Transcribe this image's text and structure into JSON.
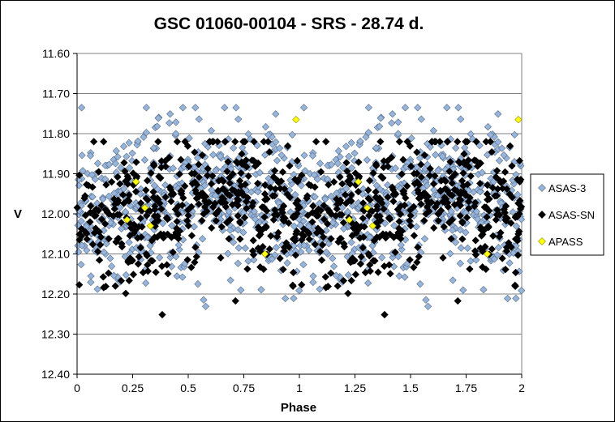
{
  "chart_data": {
    "type": "scatter",
    "title": "GSC 01060-00104  - SRS - 28.74 d.",
    "xlabel": "Phase",
    "ylabel": "V",
    "xlim": [
      0,
      2
    ],
    "ylim": [
      11.6,
      12.4
    ],
    "y_reversed": true,
    "grid": "horizontal",
    "legend_position": "right",
    "x_ticks": [
      "0",
      "0.25",
      "0.5",
      "0.75",
      "1",
      "1.25",
      "1.5",
      "1.75",
      "2"
    ],
    "y_ticks": [
      "11.60",
      "11.70",
      "11.80",
      "11.90",
      "12.00",
      "12.10",
      "12.20",
      "12.30",
      "12.40"
    ],
    "series": [
      {
        "name": "ASAS-3",
        "color": "#99B4D9",
        "stroke": "#4F6C8F",
        "marker": "diamond",
        "count": 1050,
        "mean": 11.975,
        "sd": 0.095,
        "y_min": 11.735,
        "y_max": 12.255
      },
      {
        "name": "ASAS-SN",
        "color": "#000000",
        "stroke": "#000000",
        "marker": "diamond",
        "count": 820,
        "mean": 11.985,
        "sd": 0.085,
        "y_min": 11.82,
        "y_max": 12.28
      },
      {
        "name": "APASS",
        "color": "#FFFF00",
        "stroke": "#8C8C00",
        "marker": "diamond",
        "x": [
          0.225,
          0.265,
          0.305,
          0.33,
          0.845,
          0.985,
          1.225,
          1.265,
          1.305,
          1.33,
          1.845,
          1.985
        ],
        "y": [
          12.015,
          11.92,
          11.985,
          12.03,
          12.1,
          11.765,
          12.015,
          11.92,
          11.985,
          12.03,
          12.1,
          11.765
        ]
      }
    ]
  }
}
